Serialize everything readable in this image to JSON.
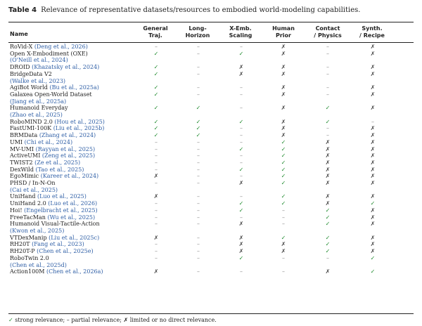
{
  "caption": {
    "label": "Table 4",
    "text": "Relevance of representative datasets/resources to embodied world-modeling capabilities."
  },
  "columns": {
    "name": "Name",
    "c1": [
      "General",
      "Traj."
    ],
    "c2": [
      "Long-",
      "Horizon"
    ],
    "c3": [
      "X-Emb.",
      "Scaling"
    ],
    "c4": [
      "Human",
      "Prior"
    ],
    "c5": [
      "Contact",
      "/ Physics"
    ],
    "c6": [
      "Synth.",
      "/ Recipe"
    ]
  },
  "symbols": {
    "strong": "✓",
    "partial": "–",
    "none": "✗"
  },
  "rows": [
    {
      "lines": [
        [
          [
            "RoVid-X ",
            ""
          ],
          [
            "(Deng et al., 2026)",
            "c"
          ]
        ]
      ],
      "v": [
        "-",
        "-",
        "-",
        "n",
        "-",
        "n"
      ]
    },
    {
      "lines": [
        [
          [
            "Open X-Embodiment (OXE)",
            ""
          ]
        ],
        [
          [
            "(O'Neill et al., 2024)",
            "c"
          ]
        ]
      ],
      "v": [
        "s",
        "-",
        "s",
        "n",
        "-",
        "n"
      ]
    },
    {
      "lines": [
        [
          [
            "DROID ",
            ""
          ],
          [
            "(Khazatsky et al., 2024)",
            "c"
          ]
        ]
      ],
      "v": [
        "s",
        "-",
        "n",
        "n",
        "-",
        "n"
      ]
    },
    {
      "lines": [
        [
          [
            "BridgeData V2",
            ""
          ]
        ],
        [
          [
            "(Walke et al., 2023)",
            "c"
          ]
        ]
      ],
      "v": [
        "s",
        "-",
        "n",
        "n",
        "-",
        "n"
      ]
    },
    {
      "lines": [
        [
          [
            "AgiBot World ",
            ""
          ],
          [
            "(Bu et al., 2025a)",
            "c"
          ]
        ]
      ],
      "v": [
        "s",
        "-",
        "-",
        "n",
        "-",
        "n"
      ]
    },
    {
      "lines": [
        [
          [
            "Galaxea Open-World Dataset",
            ""
          ]
        ],
        [
          [
            "(Jiang et al., 2025a)",
            "c"
          ]
        ]
      ],
      "v": [
        "s",
        "-",
        "-",
        "n",
        "-",
        "n"
      ]
    },
    {
      "lines": [
        [
          [
            "Humanoid Everyday",
            ""
          ]
        ],
        [
          [
            "(Zhao et al., 2025)",
            "c"
          ]
        ]
      ],
      "v": [
        "s",
        "s",
        "-",
        "n",
        "s",
        "n"
      ]
    },
    {
      "lines": [
        [
          [
            "RoboMIND 2.0 ",
            ""
          ],
          [
            "(Hou et al., 2025)",
            "c"
          ]
        ]
      ],
      "v": [
        "s",
        "s",
        "s",
        "n",
        "s",
        "-"
      ]
    },
    {
      "lines": [
        [
          [
            "FastUMI-100K ",
            ""
          ],
          [
            "(Liu et al., 2025b)",
            "c"
          ]
        ]
      ],
      "v": [
        "s",
        "s",
        "-",
        "n",
        "-",
        "n"
      ]
    },
    {
      "lines": [
        [
          [
            "BRMData ",
            ""
          ],
          [
            "(Zhang et al., 2024)",
            "c"
          ]
        ]
      ],
      "v": [
        "s",
        "s",
        "-",
        "n",
        "-",
        "n"
      ]
    },
    {
      "lines": [
        [
          [
            "UMI ",
            ""
          ],
          [
            "(Chi et al., 2024)",
            "c"
          ]
        ]
      ],
      "v": [
        "-",
        "-",
        "-",
        "s",
        "n",
        "n"
      ]
    },
    {
      "lines": [
        [
          [
            "MV-UMI ",
            ""
          ],
          [
            "(Rayyan et al., 2025)",
            "c"
          ]
        ]
      ],
      "v": [
        "-",
        "-",
        "s",
        "s",
        "n",
        "n"
      ]
    },
    {
      "lines": [
        [
          [
            "ActiveUMI ",
            ""
          ],
          [
            "(Zeng et al., 2025)",
            "c"
          ]
        ]
      ],
      "v": [
        "-",
        "-",
        "-",
        "s",
        "n",
        "n"
      ]
    },
    {
      "lines": [
        [
          [
            "TWIST2 ",
            ""
          ],
          [
            "(Ze et al., 2025)",
            "c"
          ]
        ]
      ],
      "v": [
        "-",
        "-",
        "-",
        "s",
        "n",
        "n"
      ]
    },
    {
      "lines": [
        [
          [
            "DexWild ",
            ""
          ],
          [
            "(Tao et al., 2025)",
            "c"
          ]
        ]
      ],
      "v": [
        "-",
        "-",
        "s",
        "s",
        "n",
        "n"
      ]
    },
    {
      "lines": [
        [
          [
            "EgoMimic ",
            ""
          ],
          [
            "(Kareer et al., 2024)",
            "c"
          ]
        ]
      ],
      "v": [
        "n",
        "-",
        "-",
        "s",
        "n",
        "n"
      ]
    },
    {
      "lines": [
        [
          [
            "PHSD / In-N-On",
            ""
          ]
        ],
        [
          [
            "(Cai et al., 2025)",
            "c"
          ]
        ]
      ],
      "v": [
        "-",
        "-",
        "n",
        "s",
        "n",
        "n"
      ]
    },
    {
      "lines": [
        [
          [
            "UniHand ",
            ""
          ],
          [
            "(Luo et al., 2025)",
            "c"
          ]
        ]
      ],
      "v": [
        "n",
        "-",
        "-",
        "s",
        "n",
        "n"
      ]
    },
    {
      "lines": [
        [
          [
            "UniHand 2.0 ",
            ""
          ],
          [
            "(Luo et al., 2026)",
            "c"
          ]
        ]
      ],
      "v": [
        "-",
        "-",
        "s",
        "s",
        "n",
        "s"
      ]
    },
    {
      "lines": [
        [
          [
            "Hoi! ",
            ""
          ],
          [
            "(Engelbracht et al., 2025)",
            "c"
          ]
        ]
      ],
      "v": [
        "-",
        "-",
        "s",
        "-",
        "s",
        "n"
      ]
    },
    {
      "lines": [
        [
          [
            "FreeTacMan ",
            ""
          ],
          [
            "(Wu et al., 2025)",
            "c"
          ]
        ]
      ],
      "v": [
        "-",
        "-",
        "-",
        "-",
        "s",
        "n"
      ]
    },
    {
      "lines": [
        [
          [
            "Humanoid Visual-Tactile-Action",
            ""
          ]
        ],
        [
          [
            "(Kwon et al., 2025)",
            "c"
          ]
        ]
      ],
      "v": [
        "-",
        "-",
        "n",
        "-",
        "s",
        "n"
      ]
    },
    {
      "lines": [
        [
          [
            "VTDexManip ",
            ""
          ],
          [
            "(Liu et al., 2025c)",
            "c"
          ]
        ]
      ],
      "v": [
        "n",
        "-",
        "n",
        "s",
        "s",
        "n"
      ]
    },
    {
      "lines": [
        [
          [
            "RH20T ",
            ""
          ],
          [
            "(Fang et al., 2023)",
            "c"
          ]
        ]
      ],
      "v": [
        "-",
        "-",
        "n",
        "n",
        "s",
        "n"
      ]
    },
    {
      "lines": [
        [
          [
            "RH20T-P ",
            ""
          ],
          [
            "(Chen et al., 2025e)",
            "c"
          ]
        ]
      ],
      "v": [
        "-",
        "-",
        "n",
        "n",
        "s",
        "n"
      ]
    },
    {
      "lines": [
        [
          [
            "RoboTwin 2.0",
            ""
          ]
        ],
        [
          [
            "(Chen et al., 2025d)",
            "c"
          ]
        ]
      ],
      "v": [
        "-",
        "-",
        "s",
        "-",
        "-",
        "s"
      ]
    },
    {
      "lines": [
        [
          [
            "Action100M ",
            ""
          ],
          [
            "(Chen et al., 2026a)",
            "c"
          ]
        ]
      ],
      "v": [
        "n",
        "-",
        "-",
        "-",
        "n",
        "s"
      ]
    }
  ],
  "legend": {
    "strong_text": "strong relevance;",
    "partial_text": "partial relevance;",
    "none_text": "limited or no direct relevance."
  }
}
